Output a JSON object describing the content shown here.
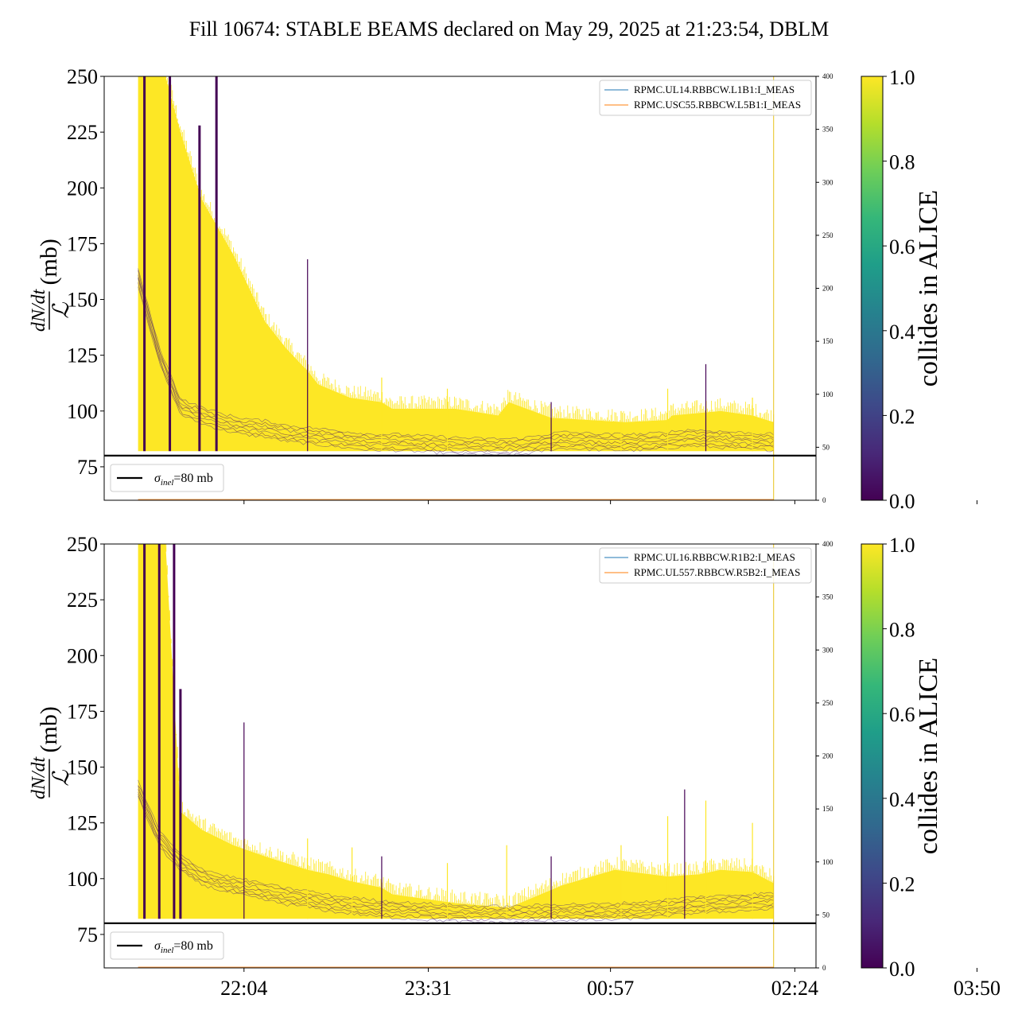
{
  "title": "Fill 10674: STABLE BEAMS declared on May 29, 2025 at 21:23:54, DBLM",
  "colors": {
    "viridis": [
      "#440154",
      "#482878",
      "#3e4989",
      "#31688e",
      "#26828e",
      "#1f9e89",
      "#35b779",
      "#6ece58",
      "#b5de2b",
      "#fde725"
    ],
    "series_blue": "#1f77b4",
    "series_orange": "#ff7f0e",
    "reference_line": "#000000"
  },
  "chart_data": [
    {
      "type": "line",
      "panel": "top",
      "ylabel_fraction_numerator": "dN/dt",
      "ylabel_fraction_denominator": "ℒ",
      "ylabel_unit": "(mb)",
      "ylim": [
        60,
        250
      ],
      "yticks": [
        75,
        100,
        125,
        150,
        175,
        200,
        225,
        250
      ],
      "y2lim": [
        0,
        400
      ],
      "y2ticks": [
        0,
        50,
        100,
        150,
        200,
        250,
        300,
        350,
        400
      ],
      "xticks": [
        "22:04",
        "23:31",
        "00:57",
        "02:24",
        "03:50"
      ],
      "xlim_minutes": [
        -66,
        270
      ],
      "reference_line": {
        "y": 80,
        "label_var": "σ",
        "label_sub": "inel",
        "label_rest": "=80 mb"
      },
      "legend": [
        "RPMC.UL14.RBBCW.L1B1:I_MEAS",
        "RPMC.USC55.RBBCW.L5B1:I_MEAS"
      ],
      "colorbar": {
        "label": "collides in ALICE",
        "range": [
          0.0,
          1.0
        ],
        "ticks": [
          "0.0",
          "0.2",
          "0.4",
          "0.6",
          "0.8",
          "1.0"
        ]
      },
      "envelope_x_minutes": [
        -50,
        -43,
        -37,
        -30,
        -20,
        -5,
        10,
        20,
        30,
        35,
        50,
        65,
        70,
        100,
        120,
        125,
        145,
        180,
        200,
        202,
        225,
        240,
        250
      ],
      "envelope_upper": [
        250,
        250,
        250,
        225,
        195,
        170,
        140,
        128,
        118,
        112,
        106,
        104,
        101,
        101,
        98,
        104,
        97,
        95,
        96,
        98,
        100,
        98,
        95
      ],
      "envelope_lower": [
        82,
        82,
        82,
        82,
        82,
        82,
        82,
        82,
        82,
        82,
        82,
        82,
        82,
        82,
        82,
        82,
        82,
        82,
        82,
        82,
        82,
        82,
        82
      ],
      "dark_band_x_minutes": [
        -50,
        -40,
        -30,
        -20,
        -10,
        0,
        10,
        20,
        30,
        40,
        50,
        60,
        70,
        90,
        110,
        130,
        150,
        170,
        190,
        210,
        230,
        250
      ],
      "dark_band_y": [
        160,
        125,
        102,
        98,
        95,
        93,
        92,
        90,
        89,
        88,
        87,
        86,
        86,
        85,
        84,
        84,
        87,
        86,
        86,
        88,
        87,
        86
      ],
      "spikes_x_minutes": [
        -47,
        -35,
        -21,
        -13,
        30,
        65,
        96,
        145,
        178,
        200,
        218,
        240
      ],
      "spikes_y": [
        250,
        250,
        228,
        250,
        168,
        115,
        110,
        104,
        100,
        110,
        121,
        106
      ],
      "vertical_marker_minutes": 250
    },
    {
      "type": "line",
      "panel": "bottom",
      "ylabel_fraction_numerator": "dN/dt",
      "ylabel_fraction_denominator": "ℒ",
      "ylabel_unit": "(mb)",
      "ylim": [
        60,
        250
      ],
      "yticks": [
        75,
        100,
        125,
        150,
        175,
        200,
        225,
        250
      ],
      "y2lim": [
        0,
        400
      ],
      "y2ticks": [
        0,
        50,
        100,
        150,
        200,
        250,
        300,
        350,
        400
      ],
      "xticks": [
        "22:04",
        "23:31",
        "00:57",
        "02:24",
        "03:50"
      ],
      "xlim_minutes": [
        -66,
        270
      ],
      "reference_line": {
        "y": 80,
        "label_var": "σ",
        "label_sub": "inel",
        "label_rest": "=80 mb"
      },
      "legend": [
        "RPMC.UL16.RBBCW.R1B2:I_MEAS",
        "RPMC.UL557.RBBCW.R5B2:I_MEAS"
      ],
      "colorbar": {
        "label": "collides in ALICE",
        "range": [
          0.0,
          1.0
        ],
        "ticks": [
          "0.0",
          "0.2",
          "0.4",
          "0.6",
          "0.8",
          "1.0"
        ]
      },
      "envelope_x_minutes": [
        -50,
        -43,
        -37,
        -30,
        -20,
        -5,
        10,
        20,
        30,
        40,
        50,
        65,
        70,
        100,
        125,
        150,
        175,
        200,
        215,
        225,
        240,
        250
      ],
      "envelope_upper": [
        250,
        250,
        250,
        130,
        122,
        115,
        110,
        107,
        104,
        102,
        99,
        96,
        93,
        89,
        87,
        97,
        104,
        101,
        102,
        104,
        103,
        98
      ],
      "envelope_lower": [
        82,
        82,
        82,
        82,
        82,
        82,
        82,
        82,
        82,
        82,
        82,
        82,
        82,
        82,
        82,
        82,
        82,
        82,
        82,
        82,
        82,
        82
      ],
      "dark_band_x_minutes": [
        -50,
        -40,
        -30,
        -20,
        -10,
        0,
        10,
        20,
        30,
        40,
        50,
        60,
        70,
        90,
        110,
        130,
        150,
        170,
        190,
        210,
        230,
        250
      ],
      "dark_band_y": [
        140,
        118,
        107,
        101,
        98,
        96,
        94,
        92,
        91,
        89,
        88,
        87,
        86,
        85,
        84,
        84,
        85,
        85,
        86,
        88,
        89,
        90
      ],
      "spikes_x_minutes": [
        -47,
        -40,
        -33,
        -30,
        0,
        30,
        51,
        65,
        96,
        124,
        145,
        178,
        200,
        208,
        218,
        240
      ],
      "spikes_y": [
        250,
        250,
        250,
        185,
        170,
        118,
        114,
        110,
        107,
        115,
        110,
        115,
        128,
        140,
        135,
        125
      ],
      "vertical_marker_minutes": 250
    }
  ]
}
